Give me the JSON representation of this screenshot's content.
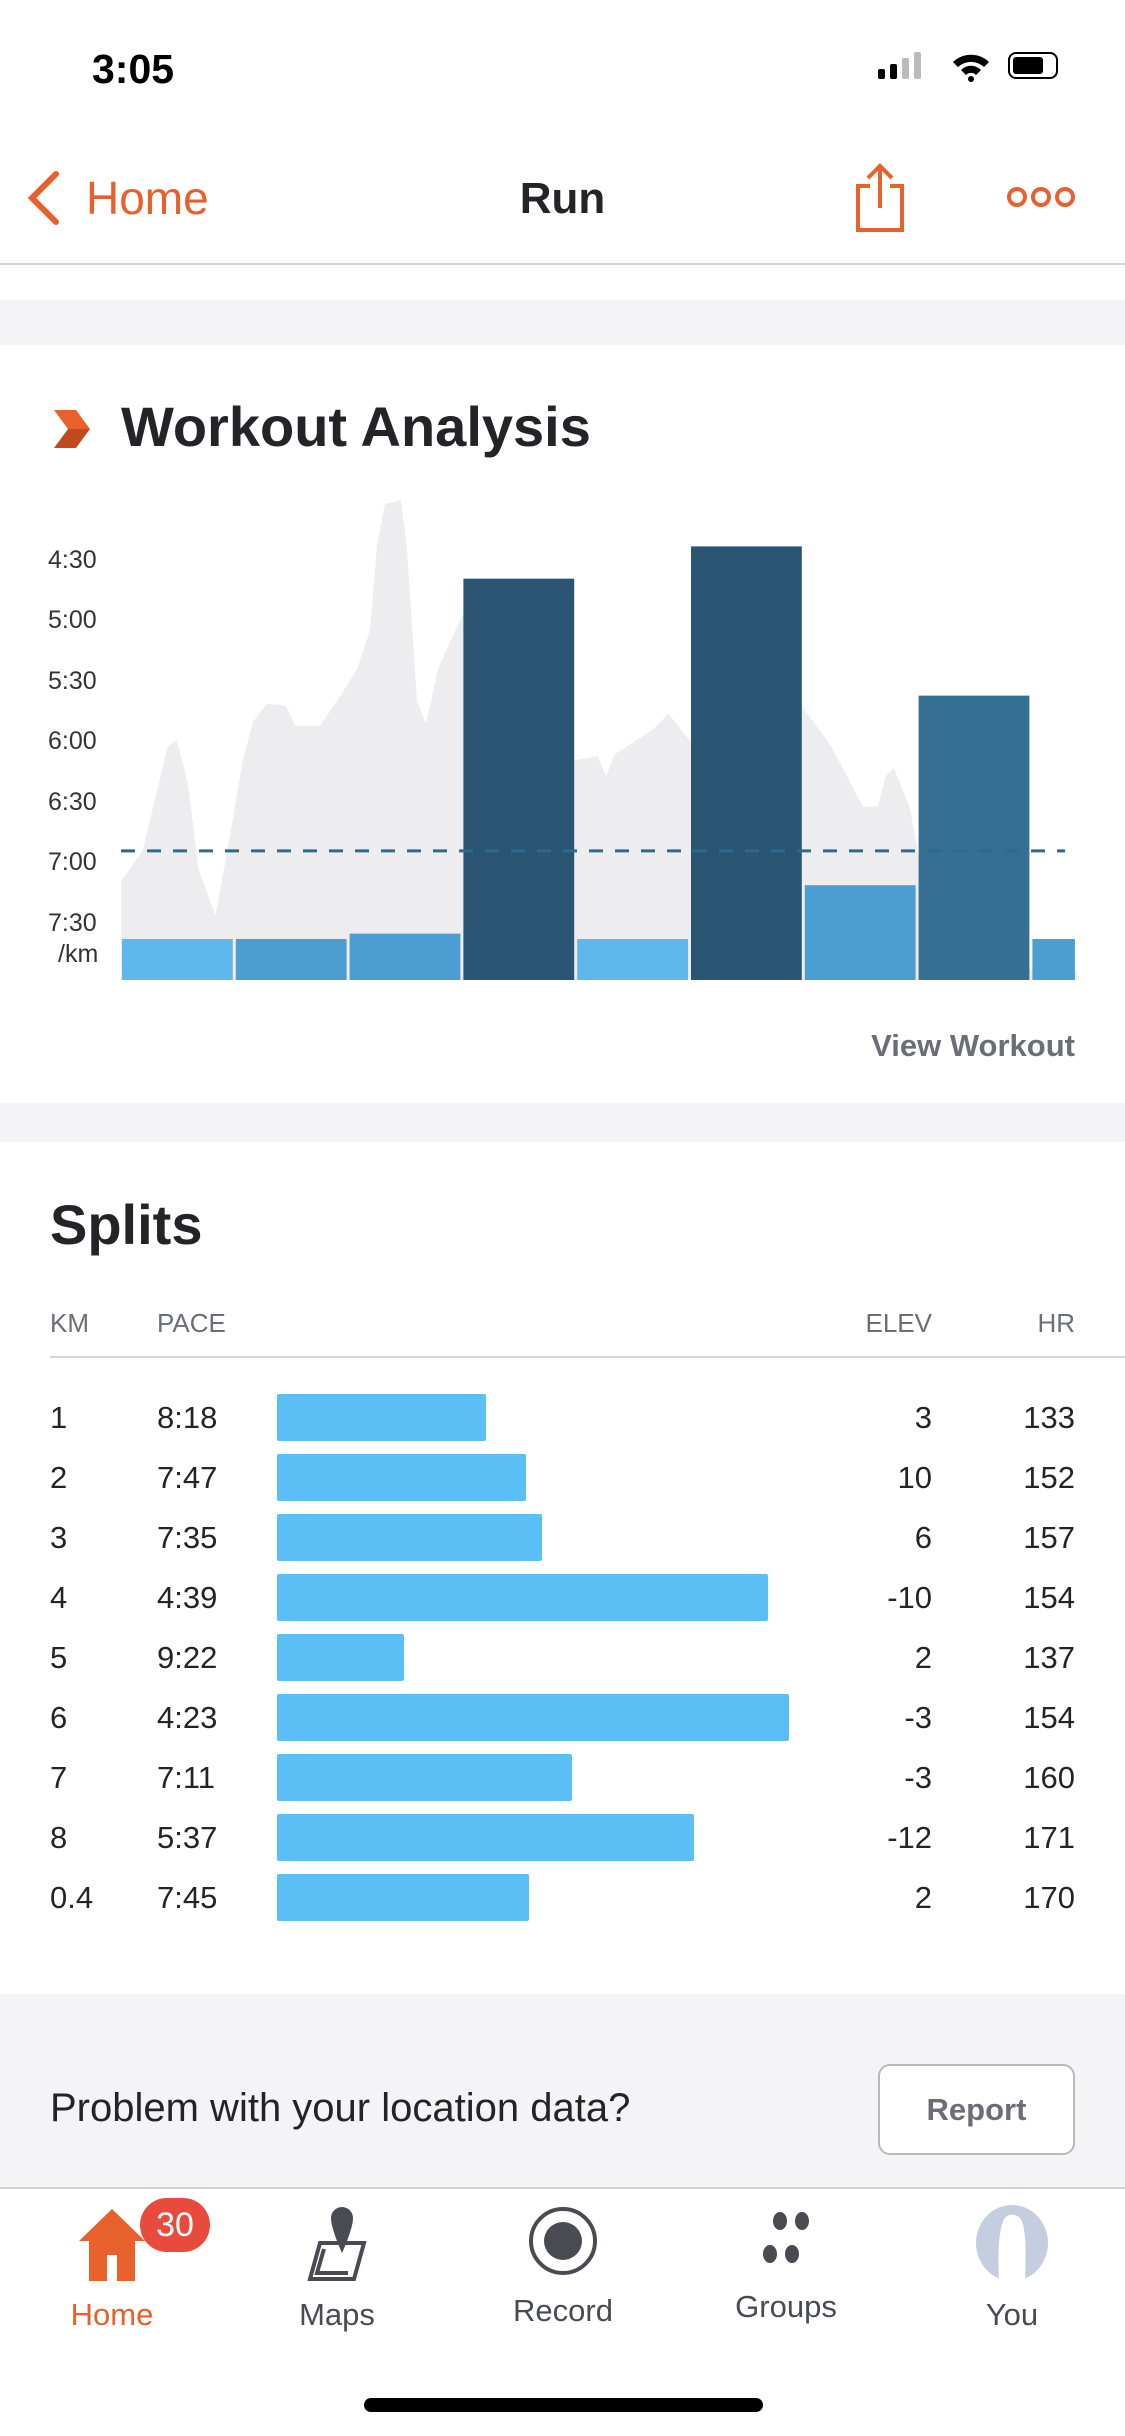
{
  "status_bar": {
    "time": "3:05"
  },
  "nav": {
    "back_label": "Home",
    "title": "Run"
  },
  "colors": {
    "accent": "#E8612C",
    "bar_light": "#5BB5EA",
    "bar_mid": "#469BD1",
    "bar_dark": "#224F6D",
    "bar_darkmid": "#2E6A8F",
    "profile": "#ededef",
    "avg_line": "#2E6A8F"
  },
  "workout_analysis": {
    "title": "Workout Analysis",
    "view_workout_label": "View Workout"
  },
  "chart_data": {
    "type": "bar",
    "title": "Workout Analysis",
    "ylabel": "/km",
    "y_ticks": [
      "4:30",
      "5:00",
      "5:30",
      "6:00",
      "6:30",
      "7:00",
      "7:30"
    ],
    "y_tick_seconds": [
      270,
      300,
      330,
      360,
      390,
      420,
      450
    ],
    "ylim_seconds": [
      240,
      478
    ],
    "average_pace_seconds": 414,
    "bars": [
      {
        "km": 1,
        "distance": 1,
        "pace_seconds": 498,
        "color": "#5BB5EA"
      },
      {
        "km": 2,
        "distance": 1,
        "pace_seconds": 467,
        "color": "#469BD1"
      },
      {
        "km": 3,
        "distance": 1,
        "pace_seconds": 455,
        "color": "#469BD1"
      },
      {
        "km": 4,
        "distance": 1,
        "pace_seconds": 279,
        "color": "#224F6D"
      },
      {
        "km": 5,
        "distance": 1,
        "pace_seconds": 562,
        "color": "#5BB5EA"
      },
      {
        "km": 6,
        "distance": 1,
        "pace_seconds": 263,
        "color": "#224F6D"
      },
      {
        "km": 7,
        "distance": 1,
        "pace_seconds": 431,
        "color": "#469BD1"
      },
      {
        "km": 8,
        "distance": 1,
        "pace_seconds": 337,
        "color": "#2E6A8F"
      },
      {
        "km": 0.4,
        "distance": 0.4,
        "pace_seconds": 465,
        "color": "#469BD1"
      }
    ],
    "pace_profile": [
      [
        0,
        429
      ],
      [
        0.19,
        414
      ],
      [
        0.41,
        362
      ],
      [
        0.49,
        359
      ],
      [
        0.59,
        381
      ],
      [
        0.68,
        423
      ],
      [
        0.83,
        446
      ],
      [
        0.94,
        412
      ],
      [
        1.07,
        369
      ],
      [
        1.16,
        350
      ],
      [
        1.28,
        341
      ],
      [
        1.45,
        342
      ],
      [
        1.53,
        352
      ],
      [
        1.75,
        352
      ],
      [
        1.94,
        336
      ],
      [
        2.08,
        323
      ],
      [
        2.19,
        304
      ],
      [
        2.25,
        262
      ],
      [
        2.32,
        242
      ],
      [
        2.46,
        240
      ],
      [
        2.51,
        262
      ],
      [
        2.6,
        339
      ],
      [
        2.68,
        351
      ],
      [
        2.79,
        323
      ],
      [
        3.01,
        296
      ],
      [
        3.17,
        339
      ],
      [
        3.31,
        362
      ],
      [
        3.65,
        369
      ],
      [
        3.98,
        369
      ],
      [
        4.19,
        367
      ],
      [
        4.26,
        377
      ],
      [
        4.34,
        366
      ],
      [
        4.67,
        354
      ],
      [
        4.81,
        346
      ],
      [
        5.01,
        360
      ],
      [
        5.22,
        389
      ],
      [
        5.49,
        385
      ],
      [
        5.77,
        346
      ],
      [
        5.98,
        342
      ],
      [
        6.24,
        362
      ],
      [
        6.52,
        392
      ],
      [
        6.65,
        392
      ],
      [
        6.72,
        377
      ],
      [
        6.79,
        373
      ],
      [
        6.93,
        392
      ],
      [
        7.13,
        454
      ],
      [
        7.4,
        478
      ],
      [
        7.81,
        473
      ],
      [
        8.4,
        473
      ]
    ]
  },
  "splits": {
    "title": "Splits",
    "headers": {
      "km": "KM",
      "pace": "PACE",
      "elev": "ELEV",
      "hr": "HR"
    },
    "rows": [
      {
        "km": "1",
        "pace": "8:18",
        "pace_seconds": 498,
        "elev": "3",
        "hr": "133"
      },
      {
        "km": "2",
        "pace": "7:47",
        "pace_seconds": 467,
        "elev": "10",
        "hr": "152"
      },
      {
        "km": "3",
        "pace": "7:35",
        "pace_seconds": 455,
        "elev": "6",
        "hr": "157"
      },
      {
        "km": "4",
        "pace": "4:39",
        "pace_seconds": 279,
        "elev": "-10",
        "hr": "154"
      },
      {
        "km": "5",
        "pace": "9:22",
        "pace_seconds": 562,
        "elev": "2",
        "hr": "137"
      },
      {
        "km": "6",
        "pace": "4:23",
        "pace_seconds": 263,
        "elev": "-3",
        "hr": "154"
      },
      {
        "km": "7",
        "pace": "7:11",
        "pace_seconds": 431,
        "elev": "-3",
        "hr": "160"
      },
      {
        "km": "8",
        "pace": "5:37",
        "pace_seconds": 337,
        "elev": "-12",
        "hr": "171"
      },
      {
        "km": "0.4",
        "pace": "7:45",
        "pace_seconds": 465,
        "elev": "2",
        "hr": "170"
      }
    ]
  },
  "location_problem": {
    "text": "Problem with your location data?",
    "report_label": "Report"
  },
  "tabbar": {
    "badge": "30",
    "items": [
      {
        "label": "Home",
        "icon": "home-icon"
      },
      {
        "label": "Maps",
        "icon": "maps-icon"
      },
      {
        "label": "Record",
        "icon": "record-icon"
      },
      {
        "label": "Groups",
        "icon": "groups-icon"
      },
      {
        "label": "You",
        "icon": "avatar-icon"
      }
    ]
  }
}
